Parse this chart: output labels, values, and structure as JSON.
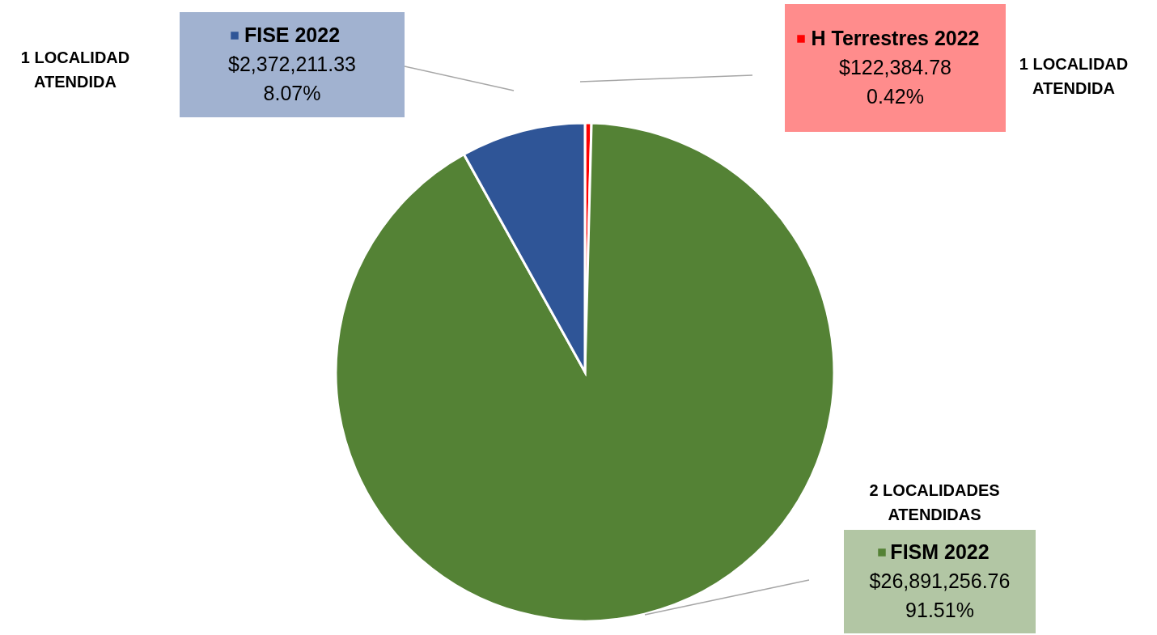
{
  "chart_data": {
    "type": "pie",
    "categories": [
      "H Terrestres 2022",
      "FISM 2022",
      "FISE 2022"
    ],
    "values": [
      122384.78,
      26891256.76,
      2372211.33
    ],
    "colors": [
      "#ff0000",
      "#548235",
      "#2f5597"
    ],
    "value_labels": [
      "$122,384.78\n0.42%",
      "$26,891,256.76\n91.51%",
      "$2,372,211.33\n8.07%"
    ],
    "annotations": [
      "1 LOCALIDAD\nATENDIDA",
      "2 LOCALIDADES\nATENDIDAS",
      "1 LOCALIDAD\nATENDIDA"
    ],
    "legend": "top"
  }
}
